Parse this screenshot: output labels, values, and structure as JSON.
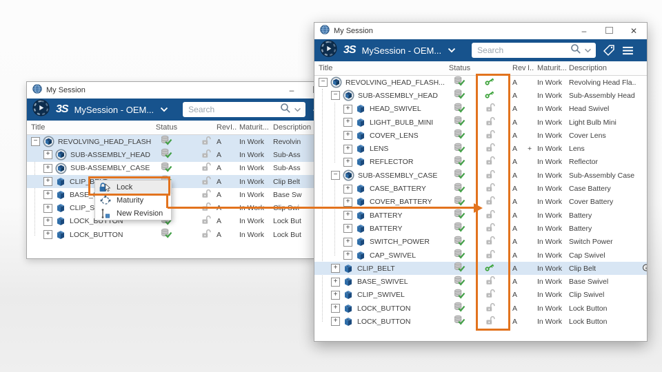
{
  "colors": {
    "toolbar_blue": "#17538d",
    "selection_blue": "#d8e6f4",
    "annotation_orange": "#e2731e",
    "locked_key_green": "#3da33b",
    "status_check_green": "#43a047",
    "unlocked_gray": "#b9b9b9"
  },
  "chrome": {
    "minimize_glyph": "–",
    "close_glyph": "✕"
  },
  "columns": {
    "title": "Title",
    "status": "Status",
    "lock": "",
    "rev": "Rev",
    "issue": "I..",
    "maturity": "Maturit...",
    "description": "Description"
  },
  "back_window": {
    "titlebar": {
      "title": "My Session"
    },
    "toolbar": {
      "logo_text": "3S",
      "app_title": "MySession - OEM...",
      "search_placeholder": "Search"
    },
    "rows": [
      {
        "title": "REVOLVING_HEAD_FLASH...",
        "level": 0,
        "expander": "-",
        "icon": "assembly-icon",
        "status": "synced",
        "lock": "unlocked",
        "rev": "A",
        "issue": "",
        "maturity": "In Work",
        "description": "Revolvin",
        "selected": true
      },
      {
        "title": "SUB-ASSEMBLY_HEAD",
        "level": 1,
        "expander": "+",
        "icon": "assembly-icon",
        "status": "synced",
        "lock": "unlocked",
        "rev": "A",
        "issue": "",
        "maturity": "In Work",
        "description": "Sub-Ass",
        "selected": true
      },
      {
        "title": "SUB-ASSEMBLY_CASE",
        "level": 1,
        "expander": "+",
        "icon": "assembly-icon",
        "status": "synced",
        "lock": "unlocked",
        "rev": "A",
        "issue": "",
        "maturity": "In Work",
        "description": "Sub-Ass",
        "selected": false
      },
      {
        "title": "CLIP_BELT",
        "level": 1,
        "expander": "+",
        "icon": "part-icon",
        "status": "synced",
        "lock": "unlocked",
        "rev": "A",
        "issue": "",
        "maturity": "In Work",
        "description": "Clip Belt",
        "selected": true
      },
      {
        "title": "BASE_SWIVEL",
        "level": 1,
        "expander": "+",
        "icon": "part-icon",
        "status": "synced",
        "lock": "unlocked",
        "rev": "A",
        "issue": "",
        "maturity": "In Work",
        "description": "Base Sw",
        "selected": false
      },
      {
        "title": "CLIP_SWIVEL",
        "level": 1,
        "expander": "+",
        "icon": "part-icon",
        "status": "synced",
        "lock": "unlocked",
        "rev": "A",
        "issue": "",
        "maturity": "In Work",
        "description": "Clip Swi",
        "selected": false
      },
      {
        "title": "LOCK_BUTTON",
        "level": 1,
        "expander": "+",
        "icon": "part-icon",
        "status": "synced",
        "lock": "unlocked",
        "rev": "A",
        "issue": "",
        "maturity": "In Work",
        "description": "Lock But",
        "selected": false
      },
      {
        "title": "LOCK_BUTTON",
        "level": 1,
        "expander": "+",
        "icon": "part-icon",
        "status": "synced",
        "lock": "unlocked",
        "rev": "A",
        "issue": "",
        "maturity": "In Work",
        "description": "Lock But",
        "selected": false
      }
    ]
  },
  "front_window": {
    "titlebar": {
      "title": "My Session"
    },
    "toolbar": {
      "logo_text": "3S",
      "app_title": "MySession - OEM...",
      "search_placeholder": "Search"
    },
    "rows": [
      {
        "title": "REVOLVING_HEAD_FLASH...",
        "level": 0,
        "expander": "-",
        "icon": "assembly-icon",
        "status": "synced",
        "lock": "locked",
        "rev": "A",
        "issue": "",
        "maturity": "In Work",
        "description": "Revolving Head Fla..",
        "selected": false
      },
      {
        "title": "SUB-ASSEMBLY_HEAD",
        "level": 1,
        "expander": "-",
        "icon": "assembly-icon",
        "status": "synced",
        "lock": "locked",
        "rev": "A",
        "issue": "",
        "maturity": "In Work",
        "description": "Sub-Assembly Head",
        "selected": false
      },
      {
        "title": "HEAD_SWIVEL",
        "level": 2,
        "expander": "+",
        "icon": "part-icon",
        "status": "synced",
        "lock": "unlocked",
        "rev": "A",
        "issue": "",
        "maturity": "In Work",
        "description": "Head Swivel",
        "selected": false
      },
      {
        "title": "LIGHT_BULB_MINI",
        "level": 2,
        "expander": "+",
        "icon": "part-icon",
        "status": "synced",
        "lock": "unlocked",
        "rev": "A",
        "issue": "",
        "maturity": "In Work",
        "description": "Light Bulb Mini",
        "selected": false
      },
      {
        "title": "COVER_LENS",
        "level": 2,
        "expander": "+",
        "icon": "part-icon",
        "status": "synced",
        "lock": "unlocked",
        "rev": "A",
        "issue": "",
        "maturity": "In Work",
        "description": "Cover Lens",
        "selected": false
      },
      {
        "title": "LENS",
        "level": 2,
        "expander": "+",
        "icon": "part-icon",
        "status": "synced",
        "lock": "unlocked",
        "rev": "A",
        "issue": "+",
        "maturity": "In Work",
        "description": "Lens",
        "selected": false
      },
      {
        "title": "REFLECTOR",
        "level": 2,
        "expander": "+",
        "icon": "part-icon",
        "status": "synced",
        "lock": "unlocked",
        "rev": "A",
        "issue": "",
        "maturity": "In Work",
        "description": "Reflector",
        "selected": false
      },
      {
        "title": "SUB-ASSEMBLY_CASE",
        "level": 1,
        "expander": "-",
        "icon": "assembly-icon",
        "status": "synced",
        "lock": "unlocked",
        "rev": "A",
        "issue": "",
        "maturity": "In Work",
        "description": "Sub-Assembly Case",
        "selected": false
      },
      {
        "title": "CASE_BATTERY",
        "level": 2,
        "expander": "+",
        "icon": "part-icon",
        "status": "synced",
        "lock": "unlocked",
        "rev": "A",
        "issue": "",
        "maturity": "In Work",
        "description": "Case Battery",
        "selected": false
      },
      {
        "title": "COVER_BATTERY",
        "level": 2,
        "expander": "+",
        "icon": "part-icon",
        "status": "synced",
        "lock": "unlocked",
        "rev": "A",
        "issue": "",
        "maturity": "In Work",
        "description": "Cover Battery",
        "selected": false
      },
      {
        "title": "BATTERY",
        "level": 2,
        "expander": "+",
        "icon": "part-icon",
        "status": "synced",
        "lock": "unlocked",
        "rev": "A",
        "issue": "",
        "maturity": "In Work",
        "description": "Battery",
        "selected": false
      },
      {
        "title": "BATTERY",
        "level": 2,
        "expander": "+",
        "icon": "part-icon",
        "status": "synced",
        "lock": "unlocked",
        "rev": "A",
        "issue": "",
        "maturity": "In Work",
        "description": "Battery",
        "selected": false
      },
      {
        "title": "SWITCH_POWER",
        "level": 2,
        "expander": "+",
        "icon": "part-icon",
        "status": "synced",
        "lock": "unlocked",
        "rev": "A",
        "issue": "",
        "maturity": "In Work",
        "description": "Switch Power",
        "selected": false
      },
      {
        "title": "CAP_SWIVEL",
        "level": 2,
        "expander": "+",
        "icon": "part-icon",
        "status": "synced",
        "lock": "unlocked",
        "rev": "A",
        "issue": "",
        "maturity": "In Work",
        "description": "Cap Swivel",
        "selected": false
      },
      {
        "title": "CLIP_BELT",
        "level": 1,
        "expander": "+",
        "icon": "part-icon",
        "status": "synced",
        "lock": "locked",
        "rev": "A",
        "issue": "",
        "maturity": "In Work",
        "description": "Clip Belt",
        "selected": true,
        "edge_badge": true
      },
      {
        "title": "BASE_SWIVEL",
        "level": 1,
        "expander": "+",
        "icon": "part-icon",
        "status": "synced",
        "lock": "unlocked",
        "rev": "A",
        "issue": "",
        "maturity": "In Work",
        "description": "Base Swivel",
        "selected": false
      },
      {
        "title": "CLIP_SWIVEL",
        "level": 1,
        "expander": "+",
        "icon": "part-icon",
        "status": "synced",
        "lock": "unlocked",
        "rev": "A",
        "issue": "",
        "maturity": "In Work",
        "description": "Clip Swivel",
        "selected": false
      },
      {
        "title": "LOCK_BUTTON",
        "level": 1,
        "expander": "+",
        "icon": "part-icon",
        "status": "synced",
        "lock": "unlocked",
        "rev": "A",
        "issue": "",
        "maturity": "In Work",
        "description": "Lock Button",
        "selected": false
      },
      {
        "title": "LOCK_BUTTON",
        "level": 1,
        "expander": "+",
        "icon": "part-icon",
        "status": "synced",
        "lock": "unlocked",
        "rev": "A",
        "issue": "",
        "maturity": "In Work",
        "description": "Lock Button",
        "selected": false
      }
    ]
  },
  "context_menu": {
    "items": [
      {
        "label": "Lock"
      },
      {
        "label": "Maturity"
      },
      {
        "label": "New Revision"
      }
    ]
  }
}
